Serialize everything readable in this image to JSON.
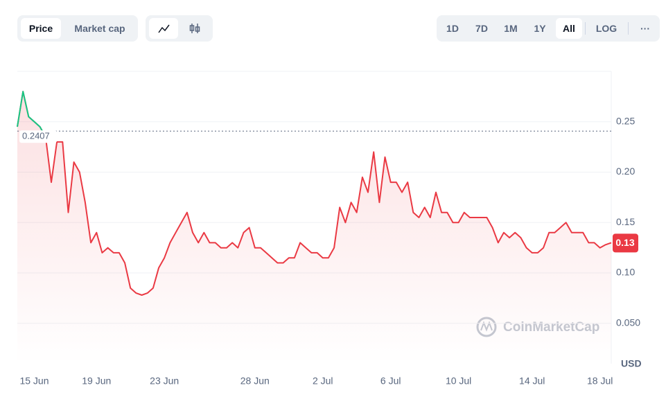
{
  "ui": {
    "toggle_metric": [
      "Price",
      "Market cap"
    ],
    "ranges": [
      "1D",
      "7D",
      "1M",
      "1Y",
      "All"
    ],
    "active_range": "All",
    "log_button": "LOG",
    "more_button": "···",
    "watermark": "CoinMarketCap"
  },
  "chart_data": {
    "type": "line",
    "categories": [
      null,
      null,
      null,
      "15 Jun",
      null,
      null,
      null,
      null,
      null,
      null,
      null,
      null,
      null,
      null,
      "19 Jun",
      null,
      null,
      null,
      null,
      null,
      null,
      null,
      null,
      null,
      null,
      null,
      "23 Jun",
      null,
      null,
      null,
      null,
      null,
      null,
      null,
      null,
      null,
      null,
      null,
      null,
      null,
      null,
      null,
      "28 Jun",
      null,
      null,
      null,
      null,
      null,
      null,
      null,
      null,
      null,
      null,
      null,
      "2 Jul",
      null,
      null,
      null,
      null,
      null,
      null,
      null,
      null,
      null,
      null,
      null,
      "6 Jul",
      null,
      null,
      null,
      null,
      null,
      null,
      null,
      null,
      null,
      null,
      null,
      "10 Jul",
      null,
      null,
      null,
      null,
      null,
      null,
      null,
      null,
      null,
      null,
      null,
      null,
      "14 Jul",
      null,
      null,
      null,
      null,
      null,
      null,
      null,
      null,
      null,
      null,
      null,
      "18 Jul",
      null,
      null
    ],
    "series": [
      {
        "color": "#ea3943",
        "above_color": "#16c784",
        "values": [
          0.245,
          0.28,
          0.255,
          0.25,
          0.245,
          0.235,
          0.19,
          0.23,
          0.23,
          0.16,
          0.21,
          0.2,
          0.17,
          0.13,
          0.14,
          0.12,
          0.125,
          0.12,
          0.12,
          0.11,
          0.085,
          0.08,
          0.078,
          0.08,
          0.085,
          0.105,
          0.115,
          0.13,
          0.14,
          0.15,
          0.16,
          0.14,
          0.13,
          0.14,
          0.13,
          0.13,
          0.125,
          0.125,
          0.13,
          0.125,
          0.14,
          0.145,
          0.125,
          0.125,
          0.12,
          0.115,
          0.11,
          0.11,
          0.115,
          0.115,
          0.13,
          0.125,
          0.12,
          0.12,
          0.115,
          0.115,
          0.125,
          0.165,
          0.15,
          0.17,
          0.16,
          0.195,
          0.18,
          0.22,
          0.17,
          0.215,
          0.19,
          0.19,
          0.18,
          0.19,
          0.16,
          0.155,
          0.165,
          0.155,
          0.18,
          0.16,
          0.16,
          0.15,
          0.15,
          0.16,
          0.155,
          0.155,
          0.155,
          0.155,
          0.145,
          0.13,
          0.14,
          0.135,
          0.14,
          0.135,
          0.125,
          0.12,
          0.12,
          0.125,
          0.14,
          0.14,
          0.145,
          0.15,
          0.14,
          0.14,
          0.14,
          0.13,
          0.13,
          0.125,
          0.128,
          0.13
        ]
      }
    ],
    "baseline": 0.2407,
    "current_price": 0.13,
    "ylim": [
      0.01,
      0.3
    ],
    "yticks": [
      {
        "value": 0.05,
        "label": "0.050"
      },
      {
        "value": 0.1,
        "label": "0.10"
      },
      0.15,
      {
        "value": 0.2,
        "label": "0.20"
      },
      0.25
    ],
    "y_unit": "USD",
    "grid": true
  }
}
